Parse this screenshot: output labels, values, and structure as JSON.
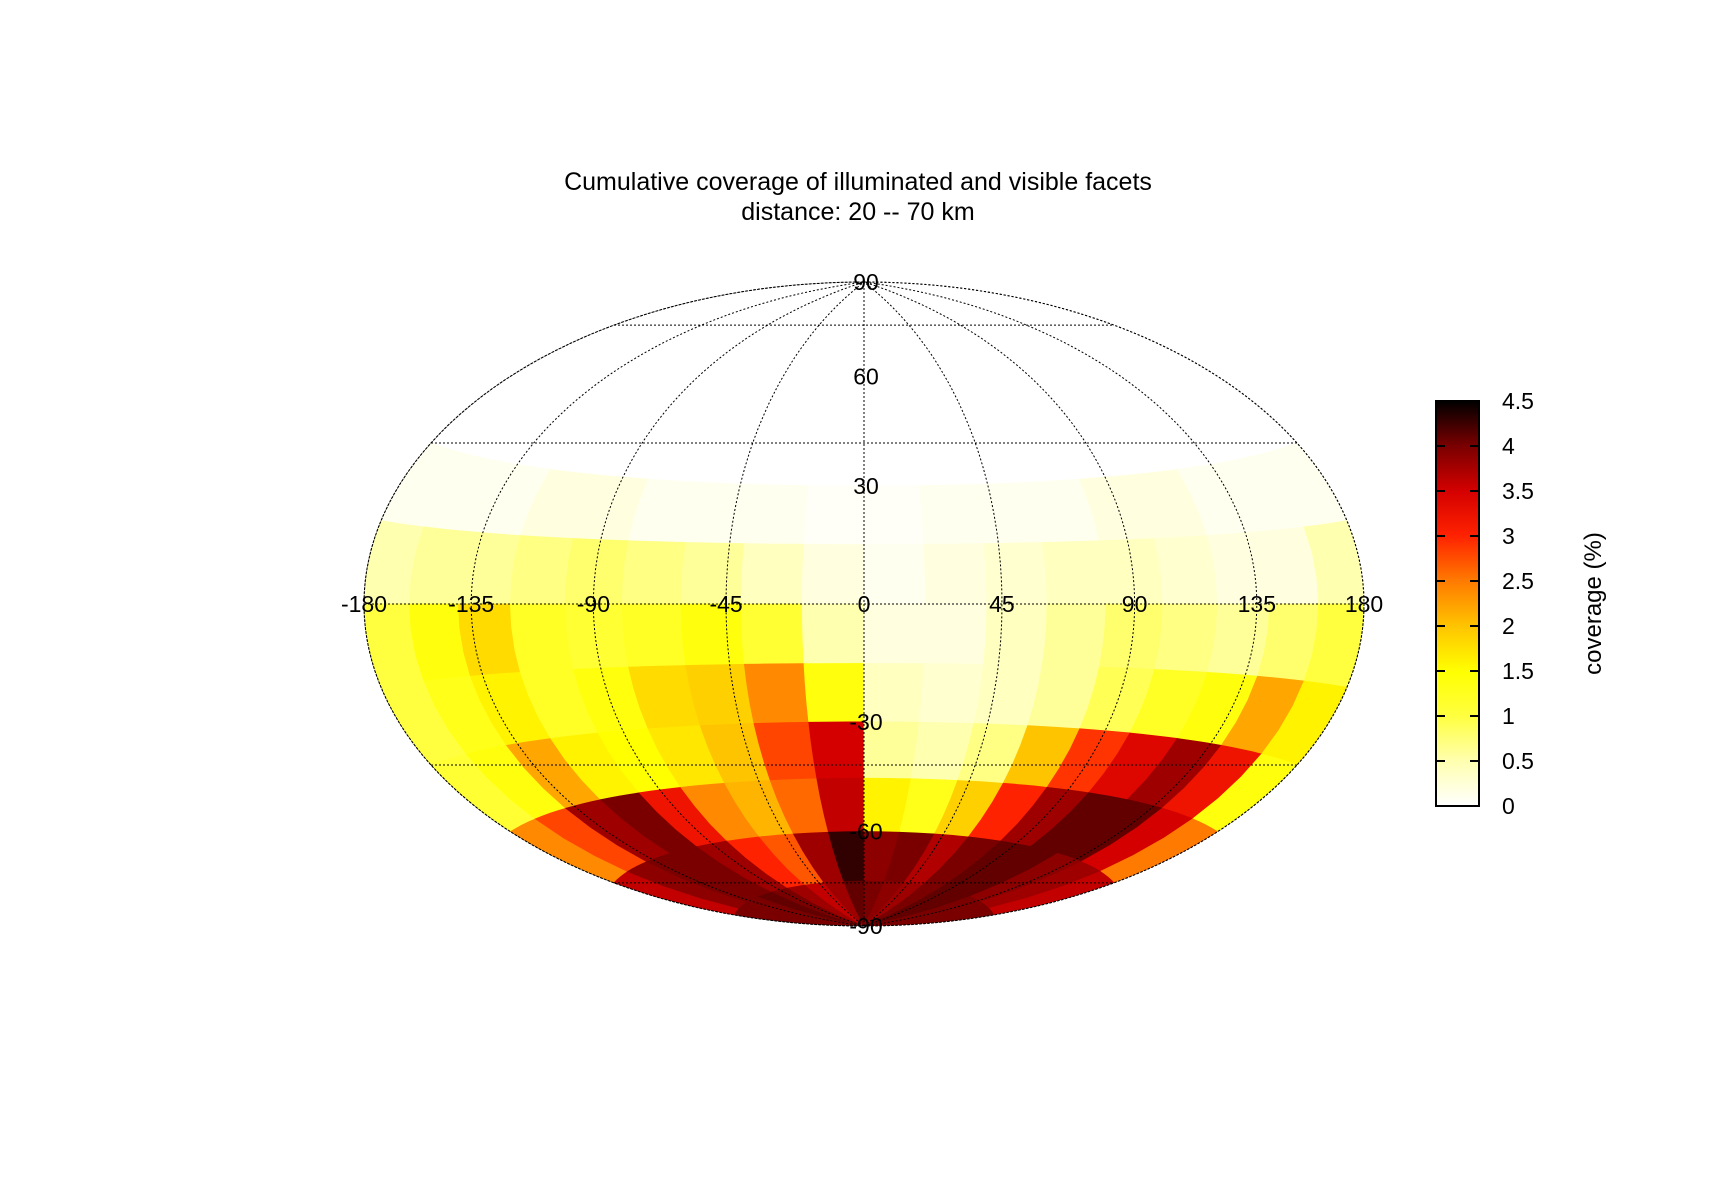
{
  "chart_data": {
    "type": "heatmap",
    "projection": "hammer-aitoff",
    "title": "Cumulative coverage of illuminated and visible facets",
    "subtitle": "distance: 20 -- 70 km",
    "xlabel": "",
    "ylabel": "",
    "xlim": [
      -180,
      180
    ],
    "ylim": [
      -90,
      90
    ],
    "longitude_ticks": [
      "-180",
      "-135",
      "-90",
      "-45",
      "0",
      "45",
      "90",
      "135",
      "180"
    ],
    "latitude_ticks": [
      "90",
      "60",
      "30",
      "-30",
      "-60",
      "-90"
    ],
    "grid": true,
    "colorbar": {
      "label": "coverage (%)",
      "range": [
        0,
        4.5
      ],
      "ticks": [
        "0",
        "0.5",
        "1",
        "1.5",
        "2",
        "2.5",
        "3",
        "3.5",
        "4",
        "4.5"
      ],
      "colormap": "hot",
      "placement": "right"
    },
    "grid_cells": {
      "lon_step_deg": 20,
      "lat_rows": [
        {
          "lat_range": [
            30,
            90
          ],
          "values": [
            0,
            0,
            0,
            0,
            0,
            0,
            0,
            0,
            0,
            0,
            0,
            0,
            0,
            0,
            0,
            0,
            0,
            0
          ]
        },
        {
          "lat_range": [
            15,
            30
          ],
          "values": [
            0.1,
            0.1,
            0.1,
            0.2,
            0.2,
            0.1,
            0.1,
            0.1,
            0.05,
            0.05,
            0.1,
            0.1,
            0.1,
            0.2,
            0.2,
            0.1,
            0.1,
            0.1
          ]
        },
        {
          "lat_range": [
            0,
            15
          ],
          "values": [
            0.5,
            0.6,
            0.6,
            0.7,
            0.8,
            0.7,
            0.6,
            0.4,
            0.2,
            0.1,
            0.2,
            0.3,
            0.4,
            0.4,
            0.3,
            0.2,
            0.2,
            0.5
          ]
        },
        {
          "lat_range": [
            -15,
            0
          ],
          "values": [
            1.0,
            1.4,
            1.8,
            1.2,
            1.1,
            1.2,
            1.4,
            1.1,
            0.5,
            0.2,
            0.2,
            0.4,
            0.6,
            0.8,
            0.7,
            0.6,
            0.8,
            1.0
          ]
        },
        {
          "lat_range": [
            -30,
            -15
          ],
          "values": [
            1.0,
            1.3,
            1.6,
            1.2,
            1.4,
            1.8,
            1.9,
            2.4,
            1.4,
            0.4,
            0.3,
            0.4,
            0.6,
            0.9,
            1.2,
            1.4,
            2.2,
            1.6
          ]
        },
        {
          "lat_range": [
            -45,
            -30
          ],
          "values": [
            1.1,
            1.4,
            2.2,
            1.6,
            1.5,
            1.7,
            2.0,
            2.8,
            3.5,
            0.6,
            0.5,
            0.7,
            2.0,
            2.9,
            3.4,
            3.8,
            3.2,
            1.4
          ]
        },
        {
          "lat_range": [
            -60,
            -45
          ],
          "values": [
            2.4,
            2.8,
            3.8,
            4.0,
            3.2,
            2.4,
            2.1,
            2.6,
            3.6,
            1.6,
            1.3,
            1.9,
            3.0,
            3.8,
            4.1,
            4.1,
            3.5,
            2.5
          ]
        },
        {
          "lat_range": [
            -75,
            -60
          ],
          "values": [
            3.6,
            3.9,
            4.0,
            4.0,
            3.8,
            3.0,
            2.7,
            3.8,
            4.3,
            3.9,
            4.0,
            3.7,
            4.0,
            4.1,
            4.1,
            3.9,
            3.8,
            3.6
          ]
        },
        {
          "lat_range": [
            -90,
            -75
          ],
          "values": [
            4.0,
            4.0,
            4.0,
            4.1,
            4.0,
            3.8,
            3.6,
            3.8,
            4.1,
            4.0,
            3.9,
            3.8,
            4.0,
            4.1,
            4.1,
            4.0,
            4.0,
            4.0
          ]
        }
      ]
    }
  }
}
